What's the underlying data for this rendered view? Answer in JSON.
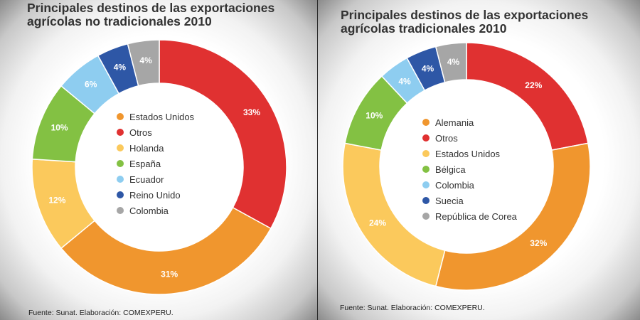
{
  "chart_data": [
    {
      "type": "pie",
      "variant": "donut",
      "title": "Principales destinos de las exportaciones\nagrícolas no tradicionales 2010",
      "source": "Fuente: Sunat. Elaboración: COMEXPERU.",
      "unit": "%",
      "legend_position": "center",
      "slices": [
        {
          "label": "Otros",
          "value": 33,
          "display": "33%",
          "color": "#e03131"
        },
        {
          "label": "Estados Unidos",
          "value": 31,
          "display": "31%",
          "color": "#f0962e"
        },
        {
          "label": "Holanda",
          "value": 12,
          "display": "12%",
          "color": "#fbc95c"
        },
        {
          "label": "España",
          "value": 10,
          "display": "10%",
          "color": "#83c143"
        },
        {
          "label": "Ecuador",
          "value": 6,
          "display": "6%",
          "color": "#8ecdf0"
        },
        {
          "label": "Reino Unido",
          "value": 4,
          "display": "4%",
          "color": "#2e57a6"
        },
        {
          "label": "Colombia",
          "value": 4,
          "display": "4%",
          "color": "#a6a6a6"
        }
      ],
      "legend": [
        {
          "label": "Estados Unidos",
          "color": "#f0962e"
        },
        {
          "label": "Otros",
          "color": "#e03131"
        },
        {
          "label": "Holanda",
          "color": "#fbc95c"
        },
        {
          "label": "España",
          "color": "#83c143"
        },
        {
          "label": "Ecuador",
          "color": "#8ecdf0"
        },
        {
          "label": "Reino Unido",
          "color": "#2e57a6"
        },
        {
          "label": "Colombia",
          "color": "#a6a6a6"
        }
      ]
    },
    {
      "type": "pie",
      "variant": "donut",
      "title": "Principales destinos de las exportaciones\nagrícolas tradicionales 2010",
      "source": "Fuente: Sunat. Elaboración: COMEXPERU.",
      "unit": "%",
      "legend_position": "center",
      "slices": [
        {
          "label": "Otros",
          "value": 22,
          "display": "22%",
          "color": "#e03131"
        },
        {
          "label": "Alemania",
          "value": 32,
          "display": "32%",
          "color": "#f0962e"
        },
        {
          "label": "Estados Unidos",
          "value": 24,
          "display": "24%",
          "color": "#fbc95c"
        },
        {
          "label": "Bélgica",
          "value": 10,
          "display": "10%",
          "color": "#83c143"
        },
        {
          "label": "Colombia",
          "value": 4,
          "display": "4%",
          "color": "#8ecdf0"
        },
        {
          "label": "Suecia",
          "value": 4,
          "display": "4%",
          "color": "#2e57a6"
        },
        {
          "label": "República de Corea",
          "value": 4,
          "display": "4%",
          "color": "#a6a6a6"
        }
      ],
      "legend": [
        {
          "label": "Alemania",
          "color": "#f0962e"
        },
        {
          "label": "Otros",
          "color": "#e03131"
        },
        {
          "label": "Estados Unidos",
          "color": "#fbc95c"
        },
        {
          "label": "Bélgica",
          "color": "#83c143"
        },
        {
          "label": "Colombia",
          "color": "#8ecdf0"
        },
        {
          "label": "Suecia",
          "color": "#2e57a6"
        },
        {
          "label": "República de Corea",
          "color": "#a6a6a6"
        }
      ]
    }
  ]
}
